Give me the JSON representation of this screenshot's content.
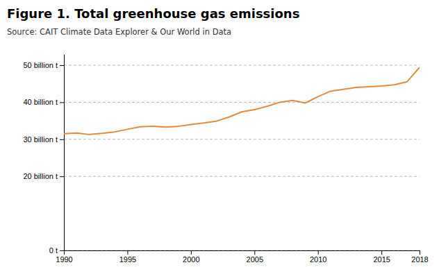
{
  "chart_data": {
    "type": "line",
    "title": "Figure 1. Total greenhouse gas emissions",
    "subtitle": "Source: CAIT Climate Data Explorer & Our World in Data",
    "x": [
      1990,
      1991,
      1992,
      1993,
      1994,
      1995,
      1996,
      1997,
      1998,
      1999,
      2000,
      2001,
      2002,
      2003,
      2004,
      2005,
      2006,
      2007,
      2008,
      2009,
      2010,
      2011,
      2012,
      2013,
      2014,
      2015,
      2016,
      2017,
      2018
    ],
    "values": [
      31.5,
      31.7,
      31.3,
      31.6,
      32.0,
      32.7,
      33.4,
      33.5,
      33.3,
      33.5,
      34.0,
      34.4,
      34.9,
      36.0,
      37.4,
      38.0,
      38.9,
      40.0,
      40.5,
      39.8,
      41.5,
      43.0,
      43.5,
      44.0,
      44.2,
      44.4,
      44.7,
      45.5,
      49.4
    ],
    "color": "#E8893A",
    "xlim": [
      1990,
      2018
    ],
    "xticks": [
      1990,
      1995,
      2000,
      2005,
      2010,
      2015,
      2018
    ],
    "ylim": [
      0,
      53
    ],
    "yticks": [
      {
        "value": 0,
        "label": "0 t"
      },
      {
        "value": 20,
        "label": "20 billion t"
      },
      {
        "value": 30,
        "label": "30 billion t"
      },
      {
        "value": 40,
        "label": "40 billion t"
      },
      {
        "value": 50,
        "label": "50 billion t"
      }
    ],
    "grid": true
  }
}
